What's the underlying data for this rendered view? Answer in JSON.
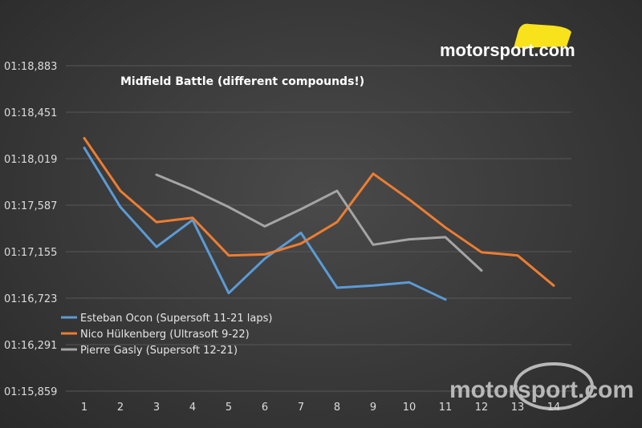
{
  "logo": {
    "text": "motorsport.com",
    "watermark_text": "motorsport.com"
  },
  "chart_data": {
    "type": "line",
    "title": "Midfield Battle (different compounds!)",
    "xlabel": "",
    "ylabel": "",
    "categories": [
      "1",
      "2",
      "3",
      "4",
      "5",
      "6",
      "7",
      "8",
      "9",
      "10",
      "11",
      "12",
      "13",
      "14"
    ],
    "y_ticks": [
      "01:18,883",
      "01:18,451",
      "01:18,019",
      "01:17,587",
      "01:17,155",
      "01:16,723",
      "01:16,291",
      "01:15,859"
    ],
    "ylim": [
      75.859,
      78.883
    ],
    "legend_position": "bottom-left",
    "grid": true,
    "series": [
      {
        "name": "Esteban Ocon (Supersoft 11-21 laps)",
        "color": "#5b9bd5",
        "values": [
          78.12,
          77.57,
          77.2,
          77.45,
          76.77,
          77.09,
          77.33,
          76.82,
          76.84,
          76.87,
          76.71,
          null,
          null,
          null
        ]
      },
      {
        "name": "Nico Hülkenberg (Ultrasoft 9-22)",
        "color": "#ed7d31",
        "values": [
          78.21,
          77.72,
          77.43,
          77.47,
          77.12,
          77.13,
          77.23,
          77.43,
          77.88,
          77.64,
          77.38,
          77.15,
          77.12,
          76.84
        ]
      },
      {
        "name": "Pierre Gasly (Supersoft 12-21)",
        "color": "#a5a5a5",
        "values": [
          null,
          null,
          77.87,
          77.73,
          77.57,
          77.39,
          77.55,
          77.72,
          77.22,
          77.27,
          77.29,
          76.98,
          null,
          null
        ]
      }
    ]
  }
}
